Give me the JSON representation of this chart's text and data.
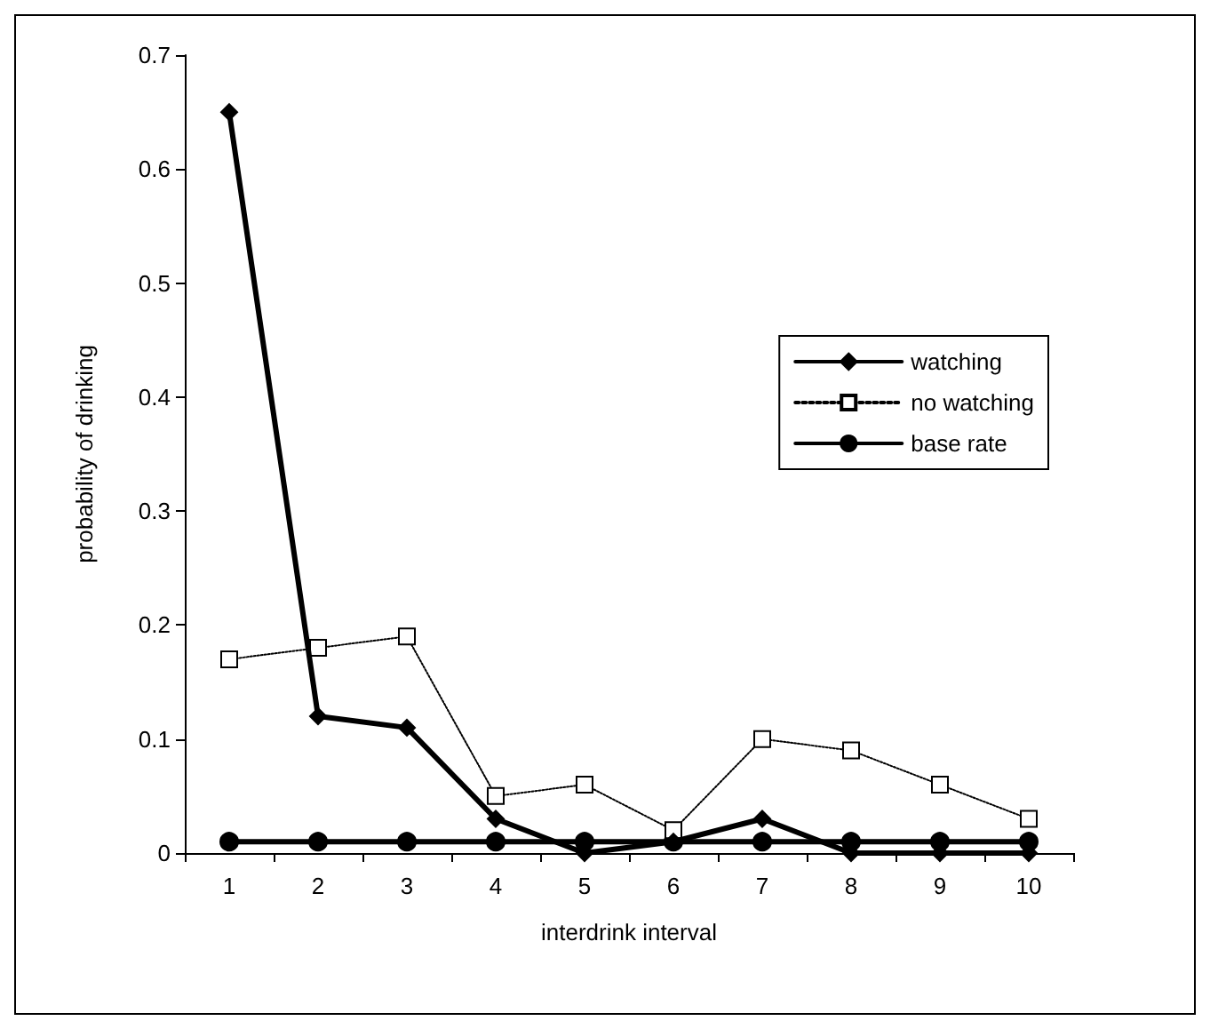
{
  "chart_data": {
    "type": "line",
    "xlabel": "interdrink interval",
    "ylabel": "probability of drinking",
    "categories": [
      "1",
      "2",
      "3",
      "4",
      "5",
      "6",
      "7",
      "8",
      "9",
      "10"
    ],
    "series": [
      {
        "name": "watching",
        "color": "#000000",
        "marker": "diamond",
        "line_style": "solid",
        "values": [
          0.65,
          0.12,
          0.11,
          0.03,
          0,
          0.01,
          0.03,
          0,
          0,
          0
        ]
      },
      {
        "name": "no watching",
        "color": "#000000",
        "marker": "square",
        "line_style": "dotted",
        "values": [
          0.17,
          0.18,
          0.19,
          0.05,
          0.06,
          0.02,
          0.1,
          0.09,
          0.06,
          0.03
        ]
      },
      {
        "name": "base rate",
        "color": "#000000",
        "marker": "circle",
        "line_style": "solid",
        "values": [
          0.01,
          0.01,
          0.01,
          0.01,
          0.01,
          0.01,
          0.01,
          0.01,
          0.01,
          0.01
        ]
      }
    ],
    "ylim": [
      0,
      0.7
    ],
    "yticks": [
      0,
      0.1,
      0.2,
      0.3,
      0.4,
      0.5,
      0.6,
      0.7
    ],
    "grid": false,
    "legend": "right"
  }
}
